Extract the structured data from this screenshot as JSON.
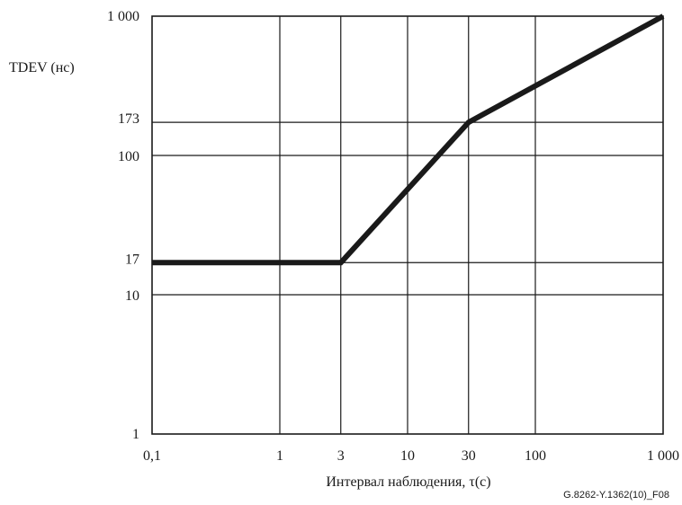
{
  "chart_data": {
    "type": "line",
    "xscale": "log",
    "yscale": "log",
    "xlim": [
      0.1,
      1000
    ],
    "ylim": [
      1,
      1000
    ],
    "ylabel": "TDEV (нс)",
    "xlabel": "Интервал наблюдения,  τ(с)",
    "figure_id": "G.8262-Y.1362(10)_F08",
    "x_ticks": [
      {
        "value": 0.1,
        "label": "0,1"
      },
      {
        "value": 1,
        "label": "1"
      },
      {
        "value": 3,
        "label": "3"
      },
      {
        "value": 10,
        "label": "10"
      },
      {
        "value": 30,
        "label": "30"
      },
      {
        "value": 100,
        "label": "100"
      },
      {
        "value": 1000,
        "label": "1 000"
      }
    ],
    "y_ticks": [
      {
        "value": 1,
        "label": "1"
      },
      {
        "value": 10,
        "label": "10"
      },
      {
        "value": 17,
        "label": "17"
      },
      {
        "value": 100,
        "label": "100"
      },
      {
        "value": 173,
        "label": "173"
      },
      {
        "value": 1000,
        "label": "1 000"
      }
    ],
    "grid_x": [
      1,
      3,
      10,
      30,
      100
    ],
    "grid_y": [
      10,
      17,
      100,
      173
    ],
    "series": [
      {
        "points": [
          {
            "x": 0.1,
            "y": 17
          },
          {
            "x": 3,
            "y": 17
          },
          {
            "x": 30,
            "y": 173
          },
          {
            "x": 1000,
            "y": 1000
          }
        ],
        "color": "#1a1a1a"
      }
    ]
  }
}
